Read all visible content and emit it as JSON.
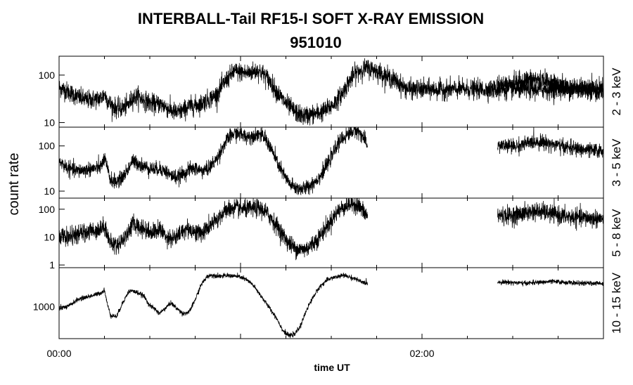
{
  "chart_data": {
    "type": "line",
    "title": "INTERBALL-Tail RF15-I SOFT X-RAY EMISSION",
    "subtitle": "951010",
    "xlabel": "time UT",
    "ylabel": "count rate",
    "x_ticks": [
      "00:00",
      "02:00"
    ],
    "x_range_minutes": [
      0,
      180
    ],
    "panels": [
      {
        "name": "2 - 3 keV",
        "scale": "log",
        "ylim": [
          8,
          250
        ],
        "ytick_labels": [
          "100",
          "10"
        ],
        "ytick_values": [
          100,
          10
        ],
        "noise": 0.1,
        "series": [
          {
            "x": [
              0,
              3,
              6,
              9,
              12,
              14,
              15,
              16,
              17,
              19,
              21,
              23,
              24,
              26,
              28,
              30,
              32,
              33,
              35,
              37,
              39,
              41,
              43,
              45,
              47,
              49,
              50,
              52,
              54,
              56,
              58,
              60,
              62,
              64,
              66,
              68,
              70,
              72,
              74,
              76,
              78,
              80,
              82,
              84,
              86,
              88,
              90,
              92,
              94,
              96,
              98,
              100,
              102,
              104,
              106,
              108,
              110,
              112,
              114,
              116,
              118,
              120,
              122,
              124,
              126,
              128,
              130,
              132,
              134,
              136,
              138,
              140,
              142,
              144,
              146,
              148,
              150,
              152,
              154,
              156,
              158,
              160,
              162,
              164,
              166,
              168,
              170,
              172,
              174,
              176,
              178,
              180,
              182,
              184,
              186,
              188,
              190,
              192,
              194,
              196
            ],
            "y": [
              55,
              45,
              35,
              30,
              31,
              33,
              40,
              30,
              24,
              20,
              20,
              24,
              32,
              36,
              30,
              26,
              24,
              25,
              22,
              18,
              16,
              18,
              22,
              23,
              25,
              30,
              32,
              38,
              60,
              90,
              120,
              115,
              110,
              118,
              125,
              100,
              70,
              45,
              30,
              22,
              17,
              14,
              14,
              15,
              16,
              18,
              22,
              30,
              45,
              75,
              110,
              130,
              140,
              130,
              115,
              95,
              85,
              70,
              55,
              50,
              50,
              50,
              50,
              50,
              50,
              50,
              50,
              50,
              50,
              50,
              50,
              50,
              50,
              50,
              50,
              50,
              50,
              50,
              50,
              50,
              50,
              50,
              50,
              50,
              50,
              50,
              50,
              50,
              50,
              50,
              50,
              50,
              50,
              50,
              50,
              50,
              50,
              50,
              50,
              50
            ]
          },
          {
            "x": [
              145,
              148,
              151,
              154,
              157,
              160,
              163,
              166,
              169,
              172,
              175,
              178,
              181
            ],
            "y": [
              62,
              65,
              70,
              78,
              82,
              78,
              68,
              60,
              55,
              52,
              50,
              48,
              47
            ]
          }
        ]
      },
      {
        "name": "3 - 5 keV",
        "scale": "log",
        "ylim": [
          7,
          260
        ],
        "ytick_labels": [
          "100",
          "10"
        ],
        "ytick_values": [
          100,
          10
        ],
        "noise": 0.08,
        "series": [
          {
            "x": [
              0,
              3,
              6,
              9,
              12,
              14,
              15,
              16,
              17,
              19,
              21,
              23,
              24,
              26,
              28,
              30,
              32,
              33,
              35,
              37,
              39,
              41,
              43,
              45,
              47,
              49,
              50,
              52,
              54,
              56,
              58,
              60,
              62,
              64,
              66,
              68,
              70,
              72,
              74,
              76,
              78,
              80,
              82,
              84,
              86,
              88,
              90,
              92,
              94,
              96,
              98,
              100,
              102
            ],
            "y": [
              45,
              32,
              28,
              30,
              32,
              35,
              55,
              30,
              18,
              16,
              20,
              32,
              45,
              42,
              35,
              32,
              30,
              32,
              28,
              22,
              20,
              24,
              30,
              32,
              28,
              30,
              35,
              50,
              90,
              150,
              190,
              180,
              160,
              170,
              185,
              150,
              90,
              45,
              25,
              15,
              12,
              11,
              12,
              15,
              20,
              32,
              55,
              110,
              150,
              190,
              230,
              180,
              100
            ]
          },
          {
            "x": [
              145,
              148,
              151,
              154,
              157,
              160,
              163,
              166,
              169,
              172,
              175,
              178,
              181
            ],
            "y": [
              105,
              100,
              98,
              110,
              125,
              122,
              110,
              98,
              90,
              85,
              80,
              78,
              76
            ]
          }
        ]
      },
      {
        "name": "5 - 8 keV",
        "scale": "log",
        "ylim": [
          0.8,
          250
        ],
        "ytick_labels": [
          "100",
          "10",
          "1"
        ],
        "ytick_values": [
          100,
          10,
          1
        ],
        "noise": 0.16,
        "series": [
          {
            "x": [
              0,
              3,
              6,
              9,
              12,
              14,
              15,
              16,
              17,
              19,
              21,
              23,
              24,
              26,
              28,
              30,
              32,
              33,
              35,
              37,
              39,
              41,
              43,
              45,
              47,
              49,
              50,
              52,
              54,
              56,
              58,
              60,
              62,
              64,
              66,
              68,
              70,
              72,
              74,
              76,
              78,
              80,
              82,
              84,
              86,
              88,
              90,
              92,
              94,
              96,
              98,
              100,
              102
            ],
            "y": [
              11,
              10,
              12,
              15,
              18,
              20,
              28,
              12,
              6,
              5,
              8,
              15,
              30,
              25,
              20,
              16,
              15,
              20,
              12,
              9,
              10,
              18,
              20,
              15,
              14,
              20,
              25,
              40,
              70,
              100,
              110,
              105,
              100,
              105,
              110,
              85,
              50,
              25,
              12,
              6,
              4,
              3.5,
              4,
              6,
              10,
              20,
              40,
              80,
              120,
              150,
              160,
              100,
              55
            ]
          },
          {
            "x": [
              145,
              148,
              151,
              154,
              157,
              160,
              163,
              166,
              169,
              172,
              175,
              178,
              181
            ],
            "y": [
              60,
              58,
              62,
              72,
              85,
              80,
              68,
              58,
              52,
              50,
              48,
              46,
              45
            ]
          }
        ]
      },
      {
        "name": "10 - 15 keV",
        "scale": "log",
        "ylim": [
          200,
          7000
        ],
        "ytick_labels": [
          "1000"
        ],
        "ytick_values": [
          1000
        ],
        "noise": 0.025,
        "series": [
          {
            "x": [
              0,
              3,
              6,
              9,
              12,
              14,
              15,
              16,
              17,
              19,
              21,
              23,
              24,
              26,
              28,
              30,
              32,
              33,
              35,
              37,
              39,
              41,
              43,
              45,
              47,
              49,
              50,
              52,
              54,
              56,
              58,
              60,
              62,
              64,
              66,
              68,
              70,
              72,
              74,
              76,
              78,
              80,
              82,
              84,
              86,
              88,
              90,
              92,
              94,
              96,
              98,
              100,
              102
            ],
            "y": [
              900,
              1000,
              1400,
              1600,
              1800,
              2000,
              2300,
              1100,
              650,
              600,
              1200,
              2100,
              2200,
              2000,
              1700,
              1050,
              850,
              700,
              900,
              1200,
              900,
              700,
              750,
              1400,
              3000,
              4500,
              4800,
              4700,
              4600,
              4700,
              4600,
              4400,
              3800,
              3000,
              2000,
              1300,
              850,
              550,
              300,
              230,
              250,
              400,
              900,
              1600,
              2600,
              3500,
              4200,
              4400,
              4800,
              4400,
              4000,
              3400,
              3200
            ]
          },
          {
            "x": [
              145,
              148,
              151,
              154,
              157,
              160,
              163,
              166,
              169,
              172,
              175,
              178,
              181
            ],
            "y": [
              3400,
              3400,
              3300,
              3200,
              3300,
              3400,
              3500,
              3400,
              3300,
              3200,
              3200,
              3200,
              3200
            ]
          }
        ]
      }
    ]
  }
}
